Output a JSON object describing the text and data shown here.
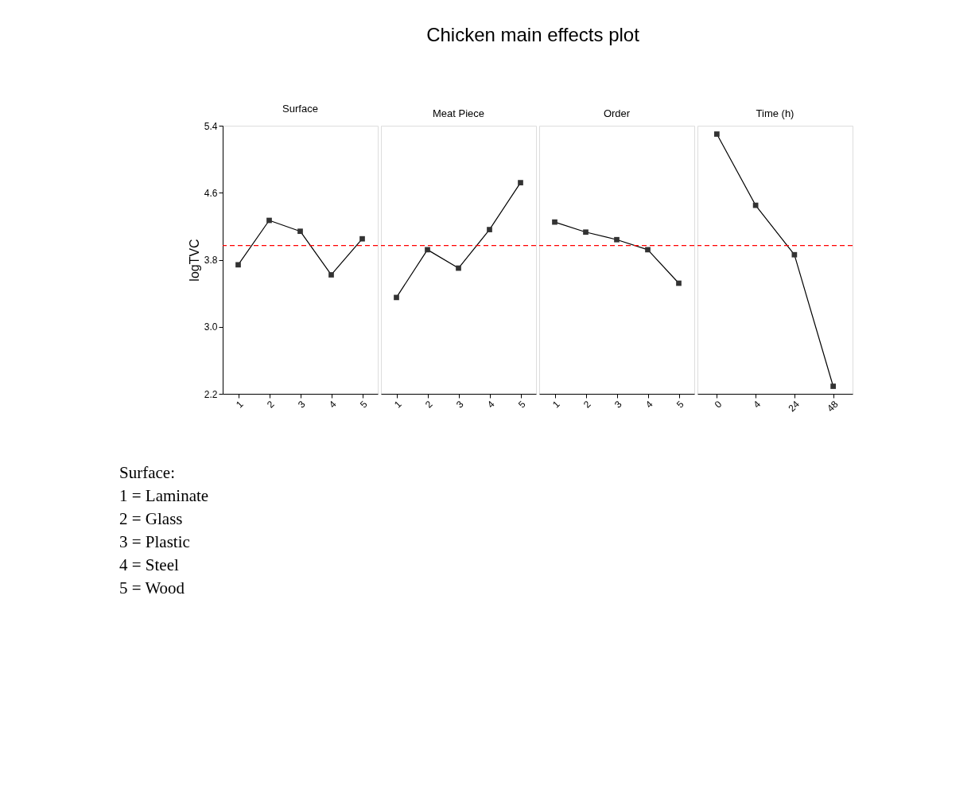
{
  "chart_data": [
    {
      "type": "other",
      "title": "Chicken main effects plot"
    },
    {
      "type": "line",
      "subtitle": "Surface",
      "ylabel": "logTVC",
      "categories": [
        "1",
        "2",
        "3",
        "4",
        "5"
      ],
      "series": [
        {
          "color": "#000000",
          "values": [
            3.74,
            4.27,
            4.14,
            3.62,
            4.05
          ]
        }
      ],
      "ylim": [
        2.2,
        5.4
      ],
      "yticks": [
        2.2,
        {
          "value": 3,
          "label": "3.0"
        },
        3.8,
        4.6,
        5.4
      ],
      "marker": "square",
      "grid": false,
      "ref_lines": [
        {
          "axis": "y",
          "value": 3.97,
          "color": "#ff0000",
          "line_style": "dashed"
        }
      ]
    },
    {
      "type": "line",
      "subtitle": "Meat Piece",
      "categories": [
        "1",
        "2",
        "3",
        "4",
        "5"
      ],
      "series": [
        {
          "color": "#000000",
          "values": [
            3.35,
            3.92,
            3.7,
            4.16,
            4.72
          ]
        }
      ],
      "ylim": [
        2.2,
        5.4
      ],
      "tick_labels": "x",
      "marker": "square",
      "grid": false,
      "ref_lines": [
        {
          "axis": "y",
          "value": 3.97,
          "color": "#ff0000",
          "line_style": "dashed"
        }
      ]
    },
    {
      "type": "line",
      "subtitle": "Order",
      "categories": [
        "1",
        "2",
        "3",
        "4",
        "5"
      ],
      "series": [
        {
          "color": "#000000",
          "values": [
            4.25,
            4.13,
            4.04,
            3.92,
            3.52
          ]
        }
      ],
      "ylim": [
        2.2,
        5.4
      ],
      "tick_labels": "x",
      "marker": "square",
      "grid": false,
      "ref_lines": [
        {
          "axis": "y",
          "value": 3.97,
          "color": "#ff0000",
          "line_style": "dashed"
        }
      ]
    },
    {
      "type": "line",
      "subtitle": "Time (h)",
      "categories": [
        "0",
        "4",
        "24",
        "48"
      ],
      "series": [
        {
          "color": "#000000",
          "values": [
            5.3,
            4.45,
            3.86,
            2.29
          ]
        }
      ],
      "ylim": [
        2.2,
        5.4
      ],
      "tick_labels": "x",
      "marker": "square",
      "grid": false,
      "ref_lines": [
        {
          "axis": "y",
          "value": 3.97,
          "color": "#ff0000",
          "line_style": "dashed"
        }
      ]
    },
    {
      "type": "other",
      "annotations": [
        "Surface:",
        "1 = Laminate",
        "2 = Glass",
        "3 = Plastic",
        "4 = Steel",
        "5 = Wood"
      ]
    }
  ]
}
